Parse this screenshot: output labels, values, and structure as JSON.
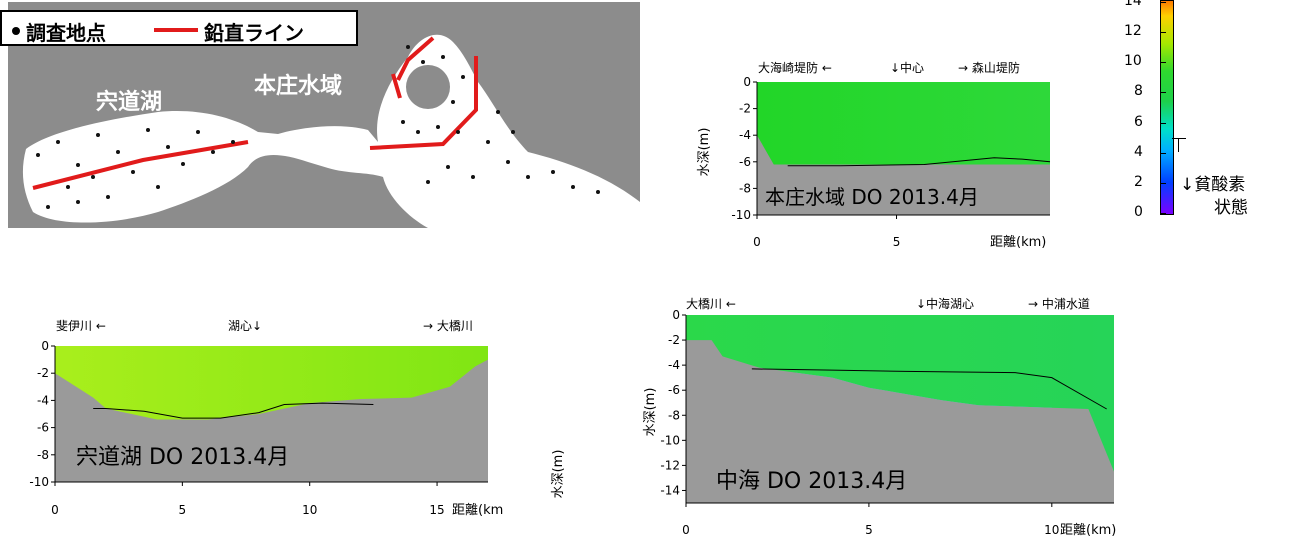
{
  "map": {
    "legend": {
      "point_label": "調査地点",
      "line_label": "鉛直ライン"
    },
    "labels": {
      "shinji": "宍道湖",
      "honjo": "本庄水域",
      "nakaumi": "中海"
    }
  },
  "colorbar": {
    "ticks": [
      "14",
      "12",
      "10",
      "8",
      "6",
      "4",
      "2",
      "0"
    ],
    "annotation": "↓貧酸素",
    "annotation2": "状態"
  },
  "chart_data": [
    {
      "type": "area",
      "title": "本庄水域 DO 2013.4月",
      "ylabel": "水深(m)",
      "xlabel": "距離(km)",
      "xlim": [
        0,
        10.5
      ],
      "ylim": [
        -10,
        0
      ],
      "x_ticks": [
        "0",
        "5"
      ],
      "y_ticks": [
        "0",
        "-2",
        "-4",
        "-6",
        "-8",
        "-10"
      ],
      "top_annotations": [
        "大海崎堤防 ←",
        "↓中心",
        "→ 森山堤防"
      ],
      "bottom_x": [
        0,
        0.6,
        1.2,
        3,
        6,
        8,
        9.8,
        10.5
      ],
      "bottom_y": [
        -4,
        -6.2,
        -6.2,
        -6.2,
        -6.2,
        -6.2,
        -6.2,
        -6.2
      ],
      "contour_x": [
        1.1,
        3,
        6,
        8.5,
        9.5,
        10.5
      ],
      "contour_y": [
        -6.3,
        -6.3,
        -6.2,
        -5.7,
        -5.8,
        -6
      ]
    },
    {
      "type": "area",
      "title": "宍道湖 DO 2013.4月",
      "ylabel": "水深(m)",
      "xlabel": "距離(km",
      "xlim": [
        0,
        17
      ],
      "ylim": [
        -10,
        0
      ],
      "x_ticks": [
        "0",
        "5",
        "10",
        "15"
      ],
      "y_ticks": [
        "0",
        "-2",
        "-4",
        "-6",
        "-8",
        "-10"
      ],
      "top_annotations": [
        "斐伊川 ←",
        "湖心↓",
        "→ 大橋川"
      ],
      "bottom_x": [
        0,
        1.5,
        2,
        4,
        6,
        8,
        10,
        12,
        14,
        15.5,
        16.5,
        17
      ],
      "bottom_y": [
        -2,
        -3.8,
        -4.6,
        -5.4,
        -5.4,
        -5,
        -4.2,
        -3.9,
        -3.8,
        -3,
        -1.5,
        -1
      ],
      "contour_x": [
        1.5,
        2,
        3.5,
        5,
        6.5,
        8,
        9,
        10.5,
        12.5
      ],
      "contour_y": [
        -4.6,
        -4.6,
        -4.8,
        -5.3,
        -5.3,
        -4.9,
        -4.3,
        -4.2,
        -4.3
      ]
    },
    {
      "type": "area",
      "title": "中海 DO 2013.4月",
      "ylabel": "水深(m)",
      "xlabel": "距離(km)",
      "xlim": [
        0,
        11.7
      ],
      "ylim": [
        -15,
        0
      ],
      "x_ticks": [
        "0",
        "5",
        "10"
      ],
      "y_ticks": [
        "0",
        "-2",
        "-4",
        "-6",
        "-8",
        "-10",
        "-12",
        "-14"
      ],
      "top_annotations": [
        "大橋川 ←",
        "↓中海湖心",
        "→ 中浦水道"
      ],
      "bottom_x": [
        0,
        0.7,
        1,
        2,
        3,
        4,
        5,
        6,
        7,
        8,
        9,
        10,
        11,
        11.7
      ],
      "bottom_y": [
        -2,
        -2,
        -3.3,
        -4.2,
        -4.6,
        -5,
        -5.8,
        -6.3,
        -6.8,
        -7.2,
        -7.3,
        -7.4,
        -7.5,
        -12.5
      ],
      "hypoxic_x": [
        3,
        4,
        5,
        6,
        7,
        8,
        9,
        10
      ],
      "hypoxic_y": [
        -4.7,
        -5.3,
        -5.9,
        -6.4,
        -6.9,
        -7.3,
        -7.4,
        -7.5
      ],
      "contour_x": [
        1.8,
        4,
        6,
        9,
        10,
        11.5
      ],
      "contour_y": [
        -4.3,
        -4.4,
        -4.5,
        -4.6,
        -5,
        -7.5
      ]
    }
  ]
}
